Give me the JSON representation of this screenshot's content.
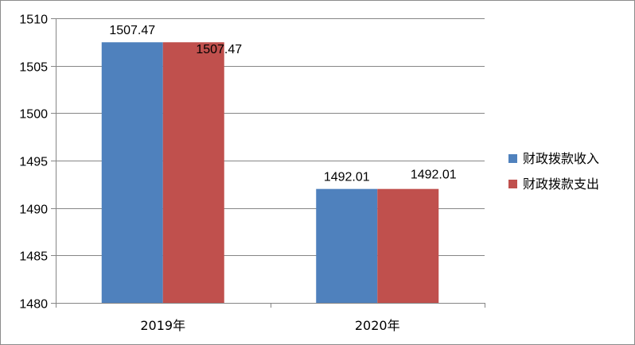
{
  "chart_data": {
    "type": "bar",
    "title": "",
    "xlabel": "",
    "ylabel": "",
    "categories": [
      "2019年",
      "2020年"
    ],
    "series": [
      {
        "name": "财政拨款收入",
        "values": [
          1507.47,
          1492.01
        ],
        "color": "#4f81bd"
      },
      {
        "name": "财政拨款支出",
        "values": [
          1507.47,
          1492.01
        ],
        "color": "#c0504d"
      }
    ],
    "data_labels": [
      [
        "1507.47",
        "1492.01"
      ],
      [
        "1507.47",
        "1492.01"
      ]
    ],
    "ylim": [
      1480,
      1510
    ],
    "yticks": [
      1480,
      1485,
      1490,
      1495,
      1500,
      1505,
      1510
    ],
    "grid": true,
    "legend_position": "right"
  }
}
